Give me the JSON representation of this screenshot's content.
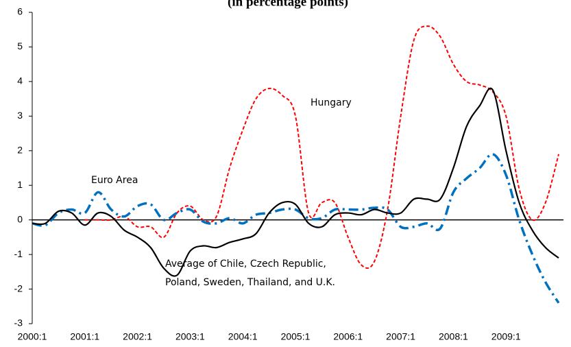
{
  "chart_data": {
    "type": "line",
    "subtitle": "(in percentage points)",
    "categories": [
      "2000:1",
      null,
      null,
      null,
      "2001:1",
      null,
      null,
      null,
      "2002:1",
      null,
      null,
      null,
      "2003:1",
      null,
      null,
      null,
      "2004:1",
      null,
      null,
      null,
      "2005:1",
      null,
      null,
      null,
      "2006:1",
      null,
      null,
      null,
      "2007:1",
      null,
      null,
      null,
      "2008:1",
      null,
      null,
      null,
      "2009:1",
      null,
      null,
      null,
      null
    ],
    "series": [
      {
        "color": "#ff0000",
        "style": "dashed",
        "values": [
          null,
          null,
          null,
          null,
          0,
          0,
          0,
          0.1,
          -0.2,
          -0.2,
          -0.5,
          0.2,
          0.4,
          0.0,
          0.1,
          1.5,
          2.6,
          3.5,
          3.8,
          3.6,
          3.0,
          0.2,
          0.5,
          0.5,
          -0.5,
          -1.3,
          -1.2,
          0.3,
          3.0,
          5.2,
          5.6,
          5.3,
          4.5,
          4.0,
          3.9,
          3.7,
          3.0,
          0.9,
          0.0,
          0.5,
          1.9
        ]
      },
      {
        "color": "#0070c0",
        "style": "dashdot",
        "values": [
          -0.1,
          -0.15,
          0.2,
          0.3,
          0.2,
          0.8,
          0.3,
          0.1,
          0.4,
          0.45,
          0.0,
          0.2,
          0.3,
          -0.05,
          -0.1,
          0.05,
          -0.1,
          0.15,
          0.2,
          0.3,
          0.3,
          0.05,
          0.05,
          0.3,
          0.3,
          0.3,
          0.35,
          0.3,
          -0.2,
          -0.2,
          -0.1,
          -0.25,
          0.8,
          1.2,
          1.5,
          1.9,
          1.3,
          0.0,
          -1.0,
          -1.8,
          -2.4
        ]
      },
      {
        "color": "#000000",
        "style": "solid",
        "values": [
          -0.1,
          -0.1,
          0.25,
          0.2,
          -0.15,
          0.2,
          0.1,
          -0.3,
          -0.5,
          -0.8,
          -1.4,
          -1.6,
          -0.9,
          -0.75,
          -0.8,
          -0.65,
          -0.55,
          -0.4,
          0.2,
          0.5,
          0.45,
          -0.1,
          -0.2,
          0.15,
          0.2,
          0.15,
          0.3,
          0.2,
          0.2,
          0.6,
          0.6,
          0.6,
          1.5,
          2.7,
          3.3,
          3.75,
          2.0,
          0.5,
          -0.3,
          -0.8,
          -1.1
        ]
      }
    ],
    "annotations": [
      "Hungary",
      "Euro Area",
      "Average of Chile, Czech Republic,",
      "Poland, Sweden, Thailand, and U.K."
    ],
    "ylim": [
      -3,
      6
    ],
    "yticks": [
      -3,
      -2,
      -1,
      0,
      1,
      2,
      3,
      4,
      5,
      6
    ],
    "zero_line": true
  }
}
